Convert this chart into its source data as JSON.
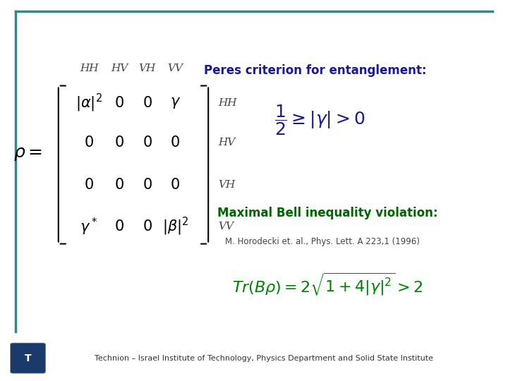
{
  "bg_color": "#ffffff",
  "border_color": "#2e8b8b",
  "title_right": "Peres criterion for entanglement:",
  "title_right_color": "#1a1a8c",
  "peres_formula": "\\frac{1}{2} \\geq |\\gamma| > 0",
  "peres_formula_color": "#1a1a8c",
  "bell_title": "Maximal Bell inequality violation:",
  "bell_title_color": "#006400",
  "bell_ref": "M. Horodecki et. al., Phys. Lett. A 223,1 (1996)",
  "bell_ref_color": "#444444",
  "bell_formula": "Tr(B\\rho) = 2\\sqrt{1+4|\\gamma|^2} > 2",
  "bell_formula_color": "#008000",
  "matrix_color": "#000000",
  "matrix_label_color": "#555555",
  "rho_label_color": "#000000",
  "footer_text": "Technion – Israel Institute of Technology, Physics Department and Solid State Institute",
  "footer_color": "#333333",
  "col_labels": [
    "HH",
    "HV",
    "VH",
    "VV"
  ],
  "row_labels": [
    "HH",
    "HV",
    "VH",
    "VV"
  ]
}
